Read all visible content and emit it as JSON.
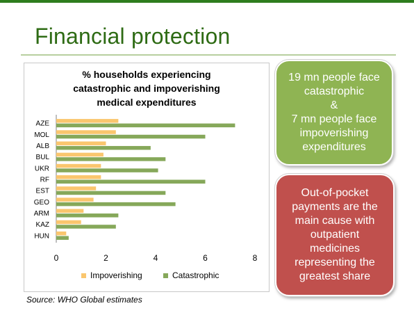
{
  "slide": {
    "title": "Financial protection",
    "source": "Source: WHO Global estimates"
  },
  "callouts": {
    "green": {
      "lines": [
        "19 mn people face",
        "catastrophic",
        "&",
        "7 mn people face",
        "impoverishing",
        "expenditures"
      ],
      "color": "#8fb453"
    },
    "red": {
      "lines": [
        "Out-of-pocket",
        "payments are the",
        "main cause with",
        "outpatient",
        "medicines",
        "representing the",
        "greatest share"
      ],
      "color": "#c0504d"
    }
  },
  "chart_data": {
    "type": "bar",
    "orientation": "horizontal",
    "title_lines": [
      "% households experiencing",
      "catastrophic and impoverishing",
      "medical expenditures"
    ],
    "categories": [
      "AZE",
      "MOL",
      "ALB",
      "BUL",
      "UKR",
      "RF",
      "EST",
      "GEO",
      "ARM",
      "KAZ",
      "HUN"
    ],
    "series": [
      {
        "name": "Impoverishing",
        "color": "#fac66e",
        "values": [
          2.5,
          2.4,
          2.0,
          1.9,
          1.8,
          1.8,
          1.6,
          1.5,
          1.1,
          1.0,
          0.4
        ]
      },
      {
        "name": "Catastrophic",
        "color": "#86a85a",
        "values": [
          7.2,
          6.0,
          3.8,
          4.4,
          4.1,
          6.0,
          4.4,
          4.8,
          2.5,
          2.4,
          0.5
        ]
      }
    ],
    "xlim": [
      0,
      8
    ],
    "xticks": [
      0,
      2,
      4,
      6,
      8
    ],
    "grid": false,
    "legend": "bottom"
  }
}
